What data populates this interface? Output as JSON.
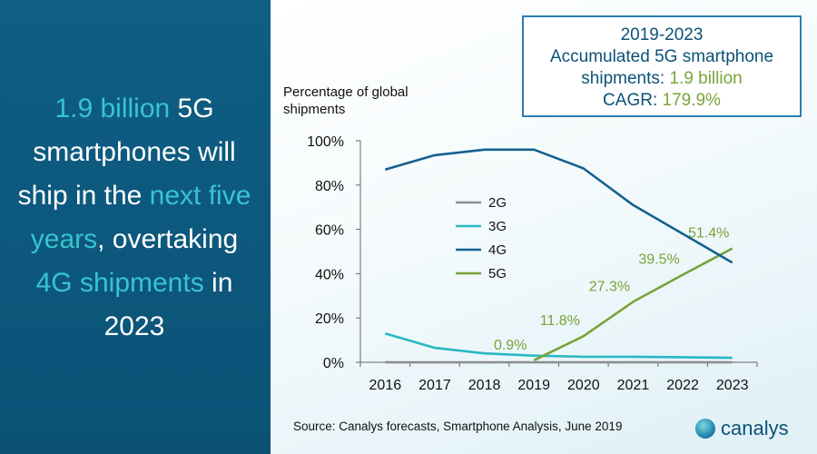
{
  "headline": {
    "part1": "1.9 billion",
    "part2": " 5G smartphones will ship in the ",
    "part3": "next five years",
    "part4": ", overtaking ",
    "part5": "4G shipments",
    "part6": " in 2023"
  },
  "info_box": {
    "line1": "2019-2023",
    "line2": "Accumulated 5G smartphone",
    "line3_prefix": "shipments: ",
    "line3_value": "1.9 billion",
    "line4_prefix": "CAGR: ",
    "line4_value": "179.9%"
  },
  "source": "Source: Canalys forecasts, Smartphone Analysis, June 2019",
  "logo_text": "canalys",
  "colors": {
    "panel": "#0f5e84",
    "highlight": "#38c4cf",
    "c2G": "#8c8c8c",
    "c3G": "#2ab7c4",
    "c4G": "#15618e",
    "c5G": "#79a33a"
  },
  "chart_data": {
    "type": "line",
    "ylabel": "Percentage of global shipments",
    "x": [
      "2016",
      "2017",
      "2018",
      "2019",
      "2020",
      "2021",
      "2022",
      "2023"
    ],
    "ylim": [
      0,
      100
    ],
    "yticks": [
      "0%",
      "20%",
      "40%",
      "60%",
      "80%",
      "100%"
    ],
    "legend_position": "center-left",
    "series": [
      {
        "name": "2G",
        "color": "#8c8c8c",
        "values": [
          0,
          0,
          0,
          0,
          0,
          0,
          0,
          0
        ]
      },
      {
        "name": "3G",
        "color": "#2ab7c4",
        "values": [
          13,
          6.5,
          4,
          3,
          2.5,
          2.5,
          2.3,
          2
        ]
      },
      {
        "name": "4G",
        "color": "#15618e",
        "values": [
          87,
          93.5,
          96,
          96,
          87.5,
          71,
          58,
          45
        ]
      },
      {
        "name": "5G",
        "color": "#79a33a",
        "values": [
          null,
          null,
          null,
          0.9,
          11.8,
          27.3,
          39.5,
          51.4
        ]
      }
    ],
    "data_labels": [
      {
        "series": "5G",
        "x": "2019",
        "text": "0.9%"
      },
      {
        "series": "5G",
        "x": "2020",
        "text": "11.8%"
      },
      {
        "series": "5G",
        "x": "2021",
        "text": "27.3%"
      },
      {
        "series": "5G",
        "x": "2022",
        "text": "39.5%"
      },
      {
        "series": "5G",
        "x": "2023",
        "text": "51.4%"
      }
    ]
  }
}
